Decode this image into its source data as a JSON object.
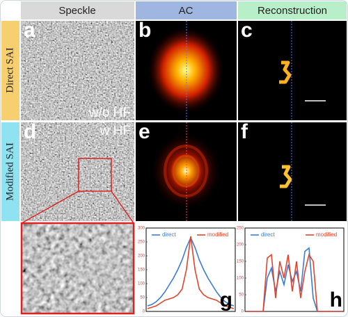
{
  "columns": [
    "Speckle",
    "AC",
    "Reconstruction"
  ],
  "rows": [
    "Direct SAI",
    "Modified SAI"
  ],
  "panel_labels": [
    "a",
    "b",
    "c",
    "d",
    "e",
    "f",
    "g",
    "h"
  ],
  "annotations": [
    "w/o HF",
    "w HF"
  ],
  "chart_data": [
    {
      "type": "line",
      "ylim": [
        0,
        300
      ],
      "yticks": [
        0,
        50,
        100,
        150,
        200,
        250,
        300
      ],
      "series": [
        {
          "name": "direct",
          "color": "#3a7bd5",
          "values": [
            20,
            25,
            35,
            50,
            70,
            95,
            120,
            150,
            185,
            230,
            265,
            230,
            185,
            150,
            120,
            95,
            70,
            50,
            35,
            25,
            20
          ]
        },
        {
          "name": "modified",
          "color": "#e0452a",
          "values": [
            10,
            15,
            20,
            30,
            40,
            45,
            50,
            60,
            80,
            150,
            270,
            150,
            80,
            60,
            50,
            45,
            40,
            30,
            20,
            15,
            10
          ]
        }
      ]
    },
    {
      "type": "line",
      "ylim": [
        0,
        250
      ],
      "yticks": [
        0,
        50,
        100,
        150,
        200,
        250
      ],
      "series": [
        {
          "name": "direct",
          "color": "#3a7bd5",
          "values": [
            0,
            0,
            0,
            0,
            0,
            100,
            130,
            60,
            120,
            80,
            140,
            90,
            120,
            60,
            180,
            190,
            40,
            0,
            0,
            0,
            0,
            0,
            0,
            0
          ]
        },
        {
          "name": "modified",
          "color": "#e0452a",
          "values": [
            0,
            0,
            0,
            0,
            0,
            160,
            170,
            40,
            150,
            100,
            170,
            60,
            150,
            40,
            120,
            170,
            150,
            0,
            0,
            0,
            0,
            0,
            0,
            0
          ]
        }
      ]
    }
  ]
}
